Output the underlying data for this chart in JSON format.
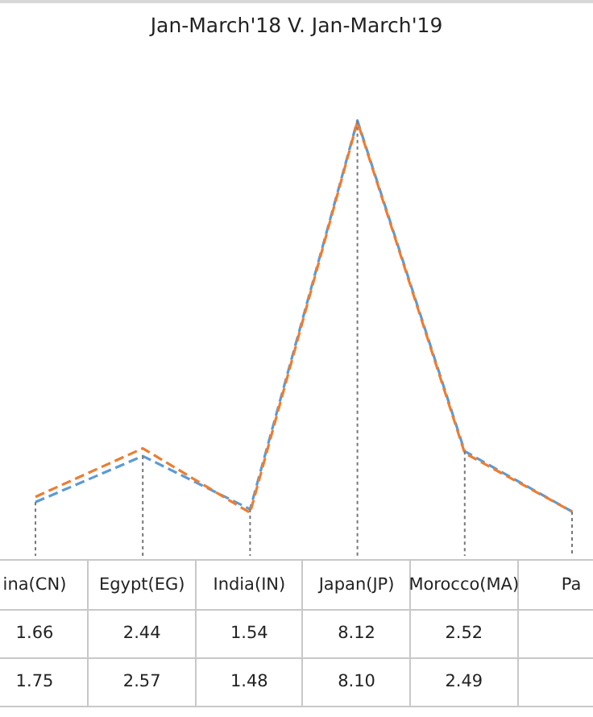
{
  "chart_data": {
    "type": "line",
    "title": "Jan-March'18  V. Jan-March'19",
    "categories": [
      "ina(CN)",
      "Egypt(EG)",
      "India(IN)",
      "Japan(JP)",
      "Morocco(MA)",
      "Pa"
    ],
    "line_style": "dashed",
    "marker": "none",
    "legend": false,
    "grid": "x",
    "series": [
      {
        "color": "#5b9bd5",
        "values": [
          1.66,
          2.44,
          1.54,
          8.12,
          2.52,
          1.5
        ],
        "value_labels": [
          "1.66",
          "2.44",
          "1.54",
          "8.12",
          "2.52",
          null
        ]
      },
      {
        "color": "#ed7d31",
        "values": [
          1.75,
          2.57,
          1.48,
          8.1,
          2.49,
          1.5
        ],
        "value_labels": [
          "1.75",
          "2.57",
          "1.48",
          "8.10",
          "2.49",
          null
        ]
      }
    ]
  }
}
